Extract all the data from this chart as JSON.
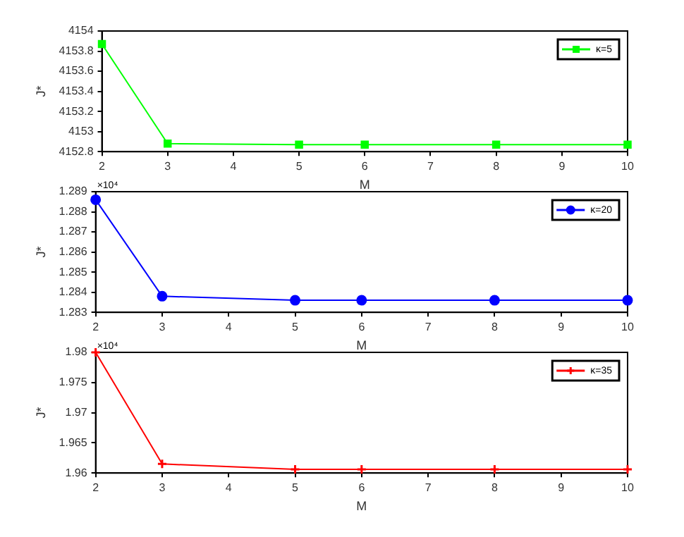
{
  "chart_data": [
    {
      "type": "line",
      "xlabel": "M",
      "ylabel": "J*",
      "x": [
        2,
        3,
        5,
        6,
        8,
        10
      ],
      "series": [
        {
          "name": "κ=5",
          "color": "#00ff00",
          "values": [
            4153.87,
            4152.88,
            4152.87,
            4152.87,
            4152.87,
            4152.87
          ]
        }
      ],
      "xlim": [
        2,
        10
      ],
      "xticks": [
        2,
        3,
        4,
        5,
        6,
        7,
        8,
        9,
        10
      ],
      "ylim": [
        4152.8,
        4154
      ],
      "yticks": [
        4152.8,
        4153,
        4153.2,
        4153.4,
        4153.6,
        4153.8,
        4154
      ],
      "grid": false,
      "legend": "top right",
      "marker": "square",
      "line_style": "solid"
    },
    {
      "type": "line",
      "xlabel": "M",
      "ylabel": "J*",
      "annotations": [
        "×10⁴"
      ],
      "x": [
        2,
        3,
        5,
        6,
        8,
        10
      ],
      "series": [
        {
          "name": "κ=20",
          "color": "#0000ff",
          "values": [
            1.2886,
            1.2838,
            1.2836,
            1.2836,
            1.2836,
            1.2836
          ]
        }
      ],
      "xlim": [
        2,
        10
      ],
      "xticks": [
        2,
        3,
        4,
        5,
        6,
        7,
        8,
        9,
        10
      ],
      "ylim": [
        1.283,
        1.289
      ],
      "yticks": [
        1.283,
        1.284,
        1.285,
        1.286,
        1.287,
        1.288,
        1.289
      ],
      "grid": false,
      "legend": "top right",
      "marker": "circle",
      "line_style": "solid"
    },
    {
      "type": "line",
      "xlabel": "M",
      "ylabel": "J*",
      "annotations": [
        "×10⁴"
      ],
      "x": [
        2,
        3,
        5,
        6,
        8,
        10
      ],
      "series": [
        {
          "name": "κ=35",
          "color": "#ff0000",
          "values": [
            1.98,
            1.9615,
            1.9606,
            1.9606,
            1.9606,
            1.9606
          ]
        }
      ],
      "xlim": [
        2,
        10
      ],
      "xticks": [
        2,
        3,
        4,
        5,
        6,
        7,
        8,
        9,
        10
      ],
      "ylim": [
        1.96,
        1.98
      ],
      "yticks": [
        1.96,
        1.965,
        1.97,
        1.975,
        1.98
      ],
      "grid": false,
      "legend": "top right",
      "marker": "cross",
      "line_style": "solid"
    }
  ]
}
